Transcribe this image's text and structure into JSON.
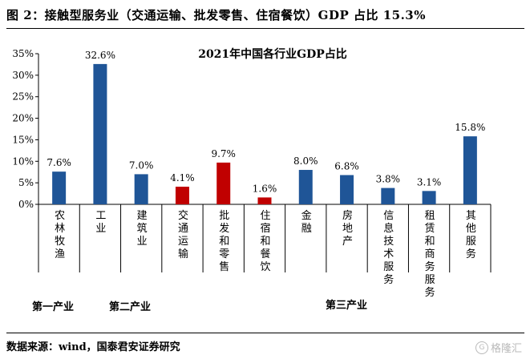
{
  "figure": {
    "title": "图 2：接触型服务业（交通运输、批发零售、住宿餐饮）GDP 占比 15.3%",
    "source": "数据来源：wind，国泰君安证券研究",
    "watermark": "格隆汇",
    "watermark_icon": "g-logo-icon"
  },
  "chart_data": {
    "type": "bar",
    "title": "2021年中国各行业GDP占比",
    "categories": [
      "农林牧渔",
      "工业",
      "建筑业",
      "交通运输",
      "批发和零售",
      "住宿和餐饮",
      "金融",
      "房地产",
      "信息技术服务",
      "租赁和商务服务",
      "其他服务"
    ],
    "values": [
      7.6,
      32.6,
      7.0,
      4.1,
      9.7,
      1.6,
      8.0,
      6.8,
      3.8,
      3.1,
      15.8
    ],
    "value_labels": [
      "7.6%",
      "32.6%",
      "7.0%",
      "4.1%",
      "9.7%",
      "1.6%",
      "8.0%",
      "6.8%",
      "3.8%",
      "3.1%",
      "15.8%"
    ],
    "highlight": [
      false,
      false,
      false,
      true,
      true,
      true,
      false,
      false,
      false,
      false,
      false
    ],
    "colors": {
      "default": "#1f5597",
      "highlight": "#c00000"
    },
    "ylim": [
      0,
      35
    ],
    "yticks": [
      0,
      5,
      10,
      15,
      20,
      25,
      30,
      35
    ],
    "ytick_labels": [
      "0%",
      "5%",
      "10%",
      "15%",
      "20%",
      "25%",
      "30%",
      "35%"
    ],
    "xlabel": "",
    "ylabel": "",
    "grid": false,
    "groups": [
      {
        "label": "第一产业",
        "start": 0,
        "end": 0
      },
      {
        "label": "第二产业",
        "start": 1,
        "end": 2
      },
      {
        "label": "第三产业",
        "start": 3,
        "end": 10
      }
    ]
  }
}
